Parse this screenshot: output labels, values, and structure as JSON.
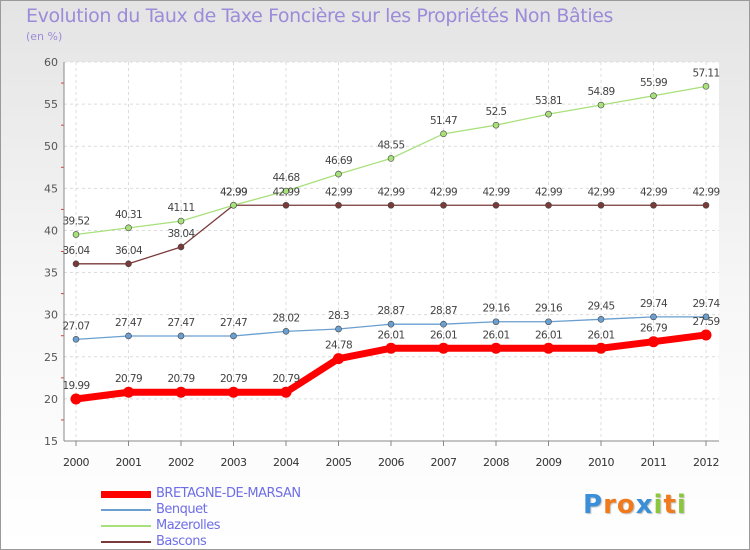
{
  "header": {
    "title": "Evolution du Taux de Taxe Foncière sur les Propriétés Non Bâties",
    "unit": "(en %)"
  },
  "logo": {
    "letters": [
      "P",
      "r",
      "o",
      "x",
      "i",
      "t",
      "i"
    ],
    "colors": [
      "#3a8fd8",
      "#f07a1c",
      "#f07a1c",
      "#3a8fd8",
      "#8cc63f",
      "#f07a1c",
      "#8cc63f"
    ]
  },
  "chart_data": {
    "type": "line",
    "x": [
      "2000",
      "2001",
      "2002",
      "2003",
      "2004",
      "2005",
      "2006",
      "2007",
      "2008",
      "2009",
      "2010",
      "2011",
      "2012"
    ],
    "ylim": [
      15,
      60
    ],
    "yticks": [
      "15",
      "20",
      "25",
      "30",
      "35",
      "40",
      "45",
      "50",
      "55",
      "60"
    ],
    "grid": true,
    "legend_position": "bottom-left",
    "series": [
      {
        "name": "BRETAGNE-DE-MARSAN",
        "color": "#ff0000",
        "values": [
          19.99,
          20.79,
          20.79,
          20.79,
          20.79,
          24.78,
          26.01,
          26.01,
          26.01,
          26.01,
          26.01,
          26.79,
          27.59
        ],
        "labels": [
          "19.99",
          "20.79",
          "20.79",
          "20.79",
          "20.79",
          "24.78",
          "26.01",
          "26.01",
          "26.01",
          "26.01",
          "26.01",
          "26.79",
          "27.59"
        ]
      },
      {
        "name": "Benquet",
        "color": "#6a9fd0",
        "values": [
          27.07,
          27.47,
          27.47,
          27.47,
          28.02,
          28.3,
          28.87,
          28.87,
          29.16,
          29.16,
          29.45,
          29.74,
          29.74
        ],
        "labels": [
          "27.07",
          "27.47",
          "27.47",
          "27.47",
          "28.02",
          "28.3",
          "28.87",
          "28.87",
          "29.16",
          "29.16",
          "29.45",
          "29.74",
          "29.74"
        ]
      },
      {
        "name": "Mazerolles",
        "color": "#a8e07a",
        "values": [
          39.52,
          40.31,
          41.11,
          42.99,
          44.68,
          46.69,
          48.55,
          51.47,
          52.5,
          53.81,
          54.89,
          55.99,
          57.11
        ],
        "labels": [
          "39.52",
          "40.31",
          "41.11",
          "42.99",
          "44.68",
          "46.69",
          "48.55",
          "51.47",
          "52.5",
          "53.81",
          "54.89",
          "55.99",
          "57.11"
        ]
      },
      {
        "name": "Bascons",
        "color": "#7a3a3a",
        "values": [
          36.04,
          36.04,
          38.04,
          42.99,
          42.99,
          42.99,
          42.99,
          42.99,
          42.99,
          42.99,
          42.99,
          42.99,
          42.99
        ],
        "labels": [
          "36.04",
          "36.04",
          "38.04",
          "42.99",
          "42.99",
          "42.99",
          "42.99",
          "42.99",
          "42.99",
          "42.99",
          "42.99",
          "42.99",
          "42.99"
        ]
      }
    ]
  }
}
